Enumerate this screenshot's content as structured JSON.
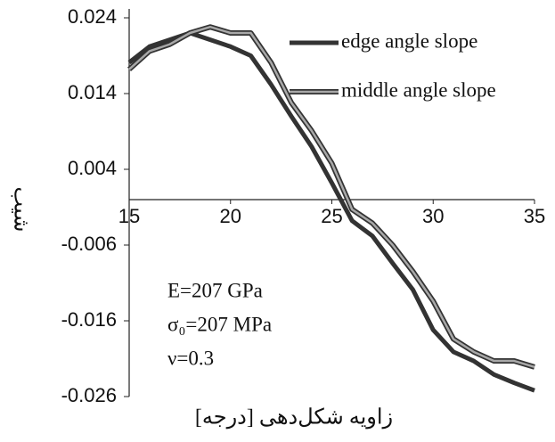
{
  "chart_data": {
    "type": "line",
    "x": [
      15,
      16,
      17,
      18,
      19,
      20,
      21,
      22,
      23,
      24,
      25,
      26,
      27,
      28,
      29,
      30,
      31,
      32,
      33,
      34,
      35
    ],
    "series": [
      {
        "name": "edge angle slope",
        "color": "#333333",
        "values": [
          0.0181,
          0.0202,
          0.0211,
          0.022,
          0.0211,
          0.0202,
          0.019,
          0.0152,
          0.011,
          0.007,
          0.0022,
          -0.0028,
          -0.0048,
          -0.0084,
          -0.0119,
          -0.0172,
          -0.0201,
          -0.0213,
          -0.0231,
          -0.0242,
          -0.0252
        ]
      },
      {
        "name": "middle angle slope",
        "color": "#a8a8a8",
        "values": [
          0.0172,
          0.0196,
          0.0205,
          0.022,
          0.0228,
          0.022,
          0.022,
          0.0181,
          0.0128,
          0.0091,
          0.0048,
          -0.0013,
          -0.0031,
          -0.006,
          -0.0095,
          -0.0134,
          -0.0184,
          -0.0201,
          -0.0213,
          -0.0213,
          -0.0221
        ]
      }
    ],
    "xlim": [
      15,
      35
    ],
    "xticks": [
      15,
      20,
      25,
      30,
      35
    ],
    "ylim": [
      -0.026,
      0.024
    ],
    "yticks": [
      -0.026,
      -0.016,
      -0.006,
      0.004,
      0.014,
      0.024
    ],
    "xlabel": "زاویه شکل‌دهی [درجه]",
    "ylabel": "شیب",
    "annotations": [
      "E=207 GPa",
      "σ₀=207 MPa",
      "ν=0.3"
    ],
    "legend": "upper right"
  }
}
